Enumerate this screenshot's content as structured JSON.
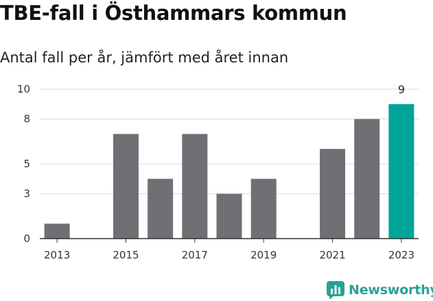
{
  "title": "TBE-fall i Östhammars kommun",
  "subtitle": "Antal fall per år, jämfört med året innan",
  "brand": {
    "name": "Newsworthy",
    "icon": "bar-chart-icon"
  },
  "colors": {
    "bar": "#706f74",
    "highlight": "#00a49a",
    "grid": "#d9d9d9",
    "axis": "#333333",
    "brand": "#2aa198"
  },
  "chart_data": {
    "type": "bar",
    "x": [
      2013,
      2014,
      2015,
      2016,
      2017,
      2018,
      2019,
      2020,
      2021,
      2022,
      2023
    ],
    "values": [
      1,
      0,
      7,
      4,
      7,
      3,
      4,
      0,
      6,
      8,
      9
    ],
    "highlight_index": 10,
    "data_labels": [
      {
        "x": 2023,
        "text": "9"
      }
    ],
    "x_tick_labels": [
      "2013",
      "2015",
      "2017",
      "2019",
      "2021",
      "2023"
    ],
    "y_ticks": [
      0,
      3,
      5,
      8,
      10
    ],
    "ylim": [
      0,
      10
    ],
    "grid": true,
    "legend": "none"
  }
}
